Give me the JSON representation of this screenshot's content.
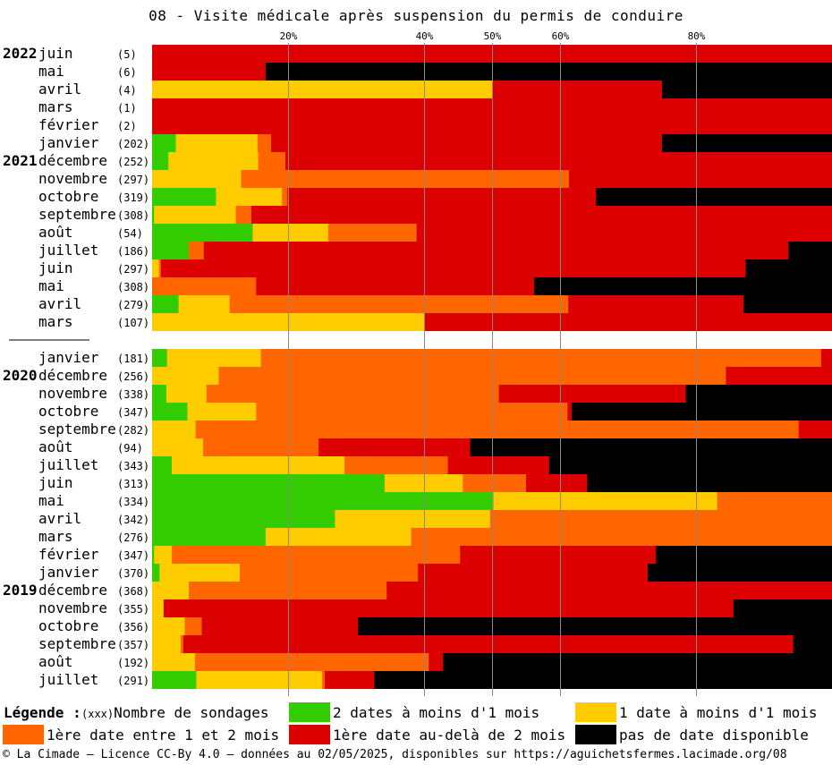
{
  "title": "08 - Visite médicale après suspension du permis de conduire",
  "colors": {
    "two_dates": "#33cc00",
    "one_date": "#ffcc00",
    "one_two": "#ff6600",
    "over_two": "#dd0000",
    "none": "#000000"
  },
  "legend": {
    "title": "Légende :",
    "count_marker": "(xxx)",
    "count_label": "Nombre de sondages",
    "items": [
      {
        "label": "2 dates à moins d'1 mois",
        "color_key": "two_dates"
      },
      {
        "label": "1 date à moins d'1 mois",
        "color_key": "one_date"
      },
      {
        "label": "1ère date entre 1 et 2 mois",
        "color_key": "one_two"
      },
      {
        "label": "1ère date au-delà de 2 mois",
        "color_key": "over_two"
      },
      {
        "label": "pas de date disponible",
        "color_key": "none"
      }
    ]
  },
  "footer": "© La Cimade — Licence CC-By 4.0 — données au 02/05/2025, disponibles sur https://aguichetsfermes.lacimade.org/08",
  "chart_data": {
    "type": "bar",
    "orientation": "horizontal",
    "stacked": "percent",
    "title": "08 - Visite médicale après suspension du permis de conduire",
    "xlim": [
      0,
      100
    ],
    "x_gridlines": [
      20,
      40,
      50,
      60,
      80
    ],
    "x_tick_labels": [
      "20%",
      "40%",
      "50%",
      "60%",
      "80%"
    ],
    "series": [
      {
        "name": "2 dates à moins d'1 mois",
        "color_key": "two_dates"
      },
      {
        "name": "1 date à moins d'1 mois",
        "color_key": "one_date"
      },
      {
        "name": "1ère date entre 1 et 2 mois",
        "color_key": "one_two"
      },
      {
        "name": "1ère date au-delà de 2 mois",
        "color_key": "over_two"
      },
      {
        "name": "pas de date disponible",
        "color_key": "none"
      }
    ],
    "groups": [
      {
        "rows": [
          {
            "year": "2022",
            "month": "juin",
            "count": "(5)",
            "values": [
              0,
              0,
              0,
              100,
              0
            ]
          },
          {
            "year": "",
            "month": "mai",
            "count": "(6)",
            "values": [
              0,
              0,
              0,
              16.7,
              83.3
            ]
          },
          {
            "year": "",
            "month": "avril",
            "count": "(4)",
            "values": [
              0,
              50,
              0,
              25,
              25
            ]
          },
          {
            "year": "",
            "month": "mars",
            "count": "(1)",
            "values": [
              0,
              0,
              0,
              100,
              0
            ]
          },
          {
            "year": "",
            "month": "février",
            "count": "(2)",
            "values": [
              0,
              0,
              0,
              100,
              0
            ]
          },
          {
            "year": "",
            "month": "janvier",
            "count": "(202)",
            "values": [
              3.5,
              12,
              2,
              57.5,
              25
            ]
          },
          {
            "year": "2021",
            "month": "décembre",
            "count": "(252)",
            "values": [
              2.4,
              13.2,
              4,
              80.4,
              0
            ]
          },
          {
            "year": "",
            "month": "novembre",
            "count": "(297)",
            "values": [
              0,
              13.1,
              48.2,
              38.7,
              0
            ]
          },
          {
            "year": "",
            "month": "octobre",
            "count": "(319)",
            "values": [
              9.4,
              9.7,
              0.8,
              45.4,
              34.7
            ]
          },
          {
            "year": "",
            "month": "septembre",
            "count": "(308)",
            "values": [
              0.3,
              12,
              2.3,
              85.4,
              0
            ]
          },
          {
            "year": "",
            "month": "août",
            "count": "(54)",
            "values": [
              14.8,
              11.1,
              13,
              61.1,
              0
            ]
          },
          {
            "year": "",
            "month": "juillet",
            "count": "(186)",
            "values": [
              5.4,
              0,
              2.2,
              86,
              6.4
            ]
          },
          {
            "year": "",
            "month": "juin",
            "count": "(297)",
            "values": [
              0,
              1,
              0.3,
              86,
              12.7
            ]
          },
          {
            "year": "",
            "month": "mai",
            "count": "(308)",
            "values": [
              0,
              0,
              15.3,
              40.9,
              43.8
            ]
          },
          {
            "year": "",
            "month": "avril",
            "count": "(279)",
            "values": [
              3.9,
              7.5,
              49.8,
              25.8,
              13
            ]
          },
          {
            "year": "",
            "month": "mars",
            "count": "(107)",
            "values": [
              0,
              40,
              0,
              60,
              0
            ]
          }
        ]
      },
      {
        "rows": [
          {
            "year": "",
            "month": "janvier",
            "count": "(181)",
            "values": [
              2.2,
              13.8,
              82.4,
              1.6,
              0
            ]
          },
          {
            "year": "2020",
            "month": "décembre",
            "count": "(256)",
            "values": [
              0,
              9.8,
              74.6,
              15.6,
              0
            ]
          },
          {
            "year": "",
            "month": "novembre",
            "count": "(338)",
            "values": [
              2.1,
              5.9,
              43,
              27.5,
              21.5
            ]
          },
          {
            "year": "",
            "month": "octobre",
            "count": "(347)",
            "values": [
              5.2,
              10.1,
              45.8,
              0.6,
              38.3
            ]
          },
          {
            "year": "",
            "month": "septembre",
            "count": "(282)",
            "values": [
              0,
              6.4,
              88.7,
              4.9,
              0
            ]
          },
          {
            "year": "",
            "month": "août",
            "count": "(94)",
            "values": [
              0,
              7.5,
              17,
              22.3,
              53.2
            ]
          },
          {
            "year": "",
            "month": "juillet",
            "count": "(343)",
            "values": [
              2.9,
              25.4,
              15.2,
              14.9,
              41.6
            ]
          },
          {
            "year": "",
            "month": "juin",
            "count": "(313)",
            "values": [
              34.2,
              11.5,
              9.3,
              9,
              36
            ]
          },
          {
            "year": "",
            "month": "mai",
            "count": "(334)",
            "values": [
              50.2,
              32.9,
              16.9,
              0,
              0
            ]
          },
          {
            "year": "",
            "month": "avril",
            "count": "(342)",
            "values": [
              26.9,
              22.8,
              50.3,
              0,
              0
            ]
          },
          {
            "year": "",
            "month": "mars",
            "count": "(276)",
            "values": [
              16.7,
              21.4,
              61.9,
              0,
              0
            ]
          },
          {
            "year": "",
            "month": "février",
            "count": "(347)",
            "values": [
              0.3,
              2.6,
              42.4,
              28.8,
              25.9
            ]
          },
          {
            "year": "",
            "month": "janvier",
            "count": "(370)",
            "values": [
              1.1,
              11.8,
              26.2,
              33.8,
              27.1
            ]
          },
          {
            "year": "2019",
            "month": "décembre",
            "count": "(368)",
            "values": [
              0,
              5.4,
              29.1,
              65.5,
              0
            ]
          },
          {
            "year": "",
            "month": "novembre",
            "count": "(355)",
            "values": [
              0,
              1.7,
              0,
              83.8,
              14.5
            ]
          },
          {
            "year": "",
            "month": "octobre",
            "count": "(356)",
            "values": [
              0,
              4.8,
              2.5,
              23,
              69.7
            ]
          },
          {
            "year": "",
            "month": "septembre",
            "count": "(357)",
            "values": [
              0,
              4.2,
              0.4,
              89.7,
              5.7
            ]
          },
          {
            "year": "",
            "month": "août",
            "count": "(192)",
            "values": [
              0,
              6.3,
              34.4,
              2.1,
              57.2
            ]
          },
          {
            "year": "",
            "month": "juillet",
            "count": "(291)",
            "values": [
              6.5,
              18.5,
              0.4,
              7.3,
              67.3
            ]
          }
        ]
      }
    ]
  }
}
